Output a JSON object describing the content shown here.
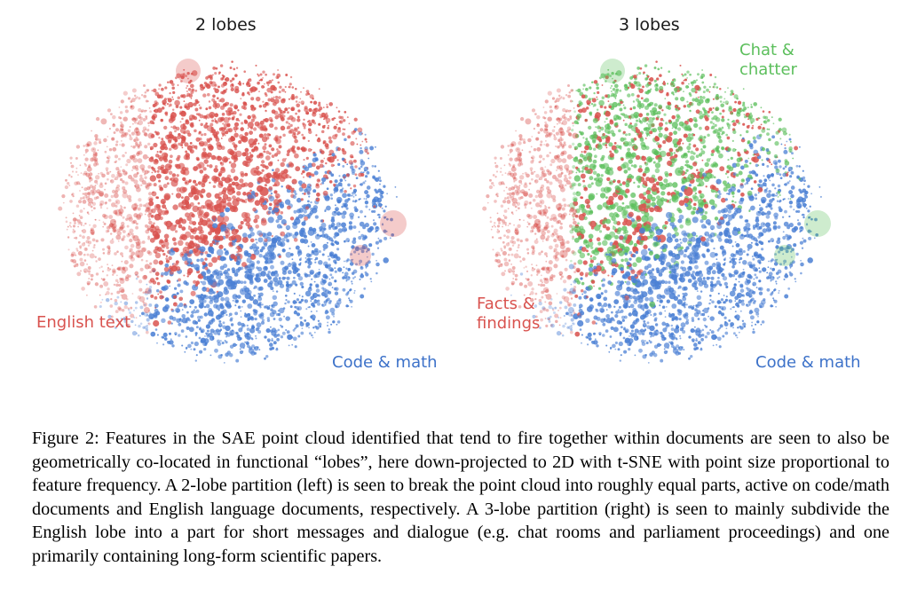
{
  "figure": {
    "caption": "Figure 2: Features in the SAE point cloud identified that tend to fire together within documents are seen to also be geometrically co-located in functional “lobes”, here down-projected to 2D with t-SNE with point size proportional to feature frequency. A 2-lobe partition (left) is seen to break the point cloud into roughly equal parts, active on code/math documents and English language documents, respectively. A 3-lobe partition (right) is seen to mainly subdivide the English lobe into a part for short messages and dialogue (e.g. chat rooms and parliament proceedings) and one primarily containing long-form scientific papers."
  },
  "chart_data": [
    {
      "type": "scatter",
      "title": "2 lobes",
      "projection": "t-SNE",
      "point_size": "proportional to feature frequency",
      "grid": false,
      "axes_visible": false,
      "series": [
        {
          "name": "English text",
          "color": "#d9534f"
        },
        {
          "name": "Code & math",
          "color": "#4a7fd4"
        }
      ]
    },
    {
      "type": "scatter",
      "title": "3 lobes",
      "projection": "t-SNE",
      "point_size": "proportional to feature frequency",
      "grid": false,
      "axes_visible": false,
      "series": [
        {
          "name": "Chat &\nchatter",
          "color": "#5cbf5c"
        },
        {
          "name": "Facts &\nfindings",
          "color": "#d9534f"
        },
        {
          "name": "Code & math",
          "color": "#4a7fd4"
        }
      ]
    }
  ]
}
